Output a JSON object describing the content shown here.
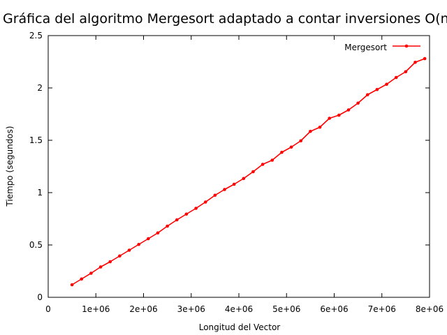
{
  "chart_data": {
    "type": "line",
    "title": "Gráfica del algoritmo Mergesort adaptado a contar inversiones O(n log n)",
    "xlabel": "Longitud del Vector",
    "ylabel": "Tiempo (segundos)",
    "xlim": [
      0,
      8000000
    ],
    "ylim": [
      0,
      2.5
    ],
    "x_ticks": [
      0,
      1000000,
      2000000,
      3000000,
      4000000,
      5000000,
      6000000,
      7000000,
      8000000
    ],
    "x_tick_labels": [
      "0",
      "1e+06",
      "2e+06",
      "3e+06",
      "4e+06",
      "5e+06",
      "6e+06",
      "7e+06",
      "8e+06"
    ],
    "y_ticks": [
      0,
      0.5,
      1,
      1.5,
      2,
      2.5
    ],
    "y_tick_labels": [
      "0",
      "0.5",
      "1",
      "1.5",
      "2",
      "2.5"
    ],
    "grid": false,
    "legend_position": "top-right",
    "series": [
      {
        "name": "Mergesort",
        "color": "#ff0000",
        "x": [
          500000,
          700000,
          900000,
          1100000,
          1300000,
          1500000,
          1700000,
          1900000,
          2100000,
          2300000,
          2500000,
          2700000,
          2900000,
          3100000,
          3300000,
          3500000,
          3700000,
          3900000,
          4100000,
          4300000,
          4500000,
          4700000,
          4900000,
          5100000,
          5300000,
          5500000,
          5700000,
          5900000,
          6100000,
          6300000,
          6500000,
          6700000,
          6900000,
          7100000,
          7300000,
          7500000,
          7700000,
          7900000
        ],
        "y": [
          0.12,
          0.175,
          0.23,
          0.29,
          0.34,
          0.395,
          0.45,
          0.505,
          0.56,
          0.615,
          0.68,
          0.74,
          0.795,
          0.85,
          0.91,
          0.975,
          1.03,
          1.08,
          1.135,
          1.2,
          1.27,
          1.31,
          1.385,
          1.435,
          1.495,
          1.585,
          1.625,
          1.71,
          1.74,
          1.79,
          1.855,
          1.935,
          1.985,
          2.035,
          2.1,
          2.155,
          2.245,
          2.28
        ]
      }
    ]
  }
}
